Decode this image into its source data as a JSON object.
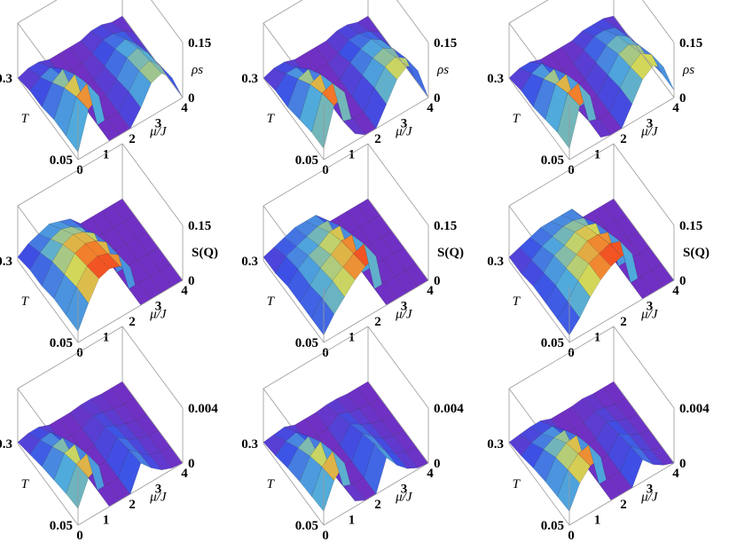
{
  "chart_data": [
    {
      "type": "surface3d",
      "row": 0,
      "col": 0,
      "zlabel": "ρs",
      "zlabel_italic": true,
      "zticks": [
        "0",
        "0.15"
      ],
      "yticks": [
        "0.05",
        "0.3"
      ],
      "ylabel": "T",
      "xticks": [
        "0",
        "1",
        "2",
        "3",
        "4"
      ],
      "xlabel": "μ/J",
      "grid_mu": [
        0,
        0.4,
        0.8,
        1.2,
        1.6,
        2.0,
        2.4,
        2.8,
        3.2,
        3.6,
        4.0
      ],
      "grid_T": [
        0.05,
        0.1,
        0.15,
        0.2,
        0.25,
        0.3
      ],
      "z": [
        [
          0.02,
          0.12,
          0.14,
          0.0,
          0.0,
          0.0,
          0.04,
          0.09,
          0.1,
          0.07,
          0.0
        ],
        [
          0.02,
          0.11,
          0.13,
          0.0,
          0.0,
          0.0,
          0.04,
          0.08,
          0.09,
          0.06,
          0.0
        ],
        [
          0.02,
          0.09,
          0.11,
          0.0,
          0.0,
          0.0,
          0.03,
          0.07,
          0.08,
          0.05,
          0.0
        ],
        [
          0.01,
          0.06,
          0.08,
          0.0,
          0.0,
          0.0,
          0.02,
          0.05,
          0.06,
          0.03,
          0.0
        ],
        [
          0.01,
          0.03,
          0.04,
          0.0,
          0.0,
          0.0,
          0.01,
          0.03,
          0.03,
          0.02,
          0.0
        ],
        [
          0.0,
          0.01,
          0.01,
          0.0,
          0.0,
          0.0,
          0.0,
          0.01,
          0.01,
          0.0,
          0.0
        ]
      ]
    },
    {
      "type": "surface3d",
      "row": 0,
      "col": 1,
      "zlabel": "ρs",
      "zlabel_italic": true,
      "zticks": [
        "0",
        "0.15"
      ],
      "yticks": [
        "0.05",
        "0.3"
      ],
      "ylabel": "T",
      "xticks": [
        "0",
        "1",
        "2",
        "3",
        "4"
      ],
      "xlabel": "μ/J",
      "grid_mu": [
        0,
        0.4,
        0.8,
        1.2,
        1.6,
        2.0,
        2.4,
        2.8,
        3.2,
        3.6,
        4.0
      ],
      "grid_T": [
        0.05,
        0.1,
        0.15,
        0.2,
        0.25,
        0.3
      ],
      "z": [
        [
          0.03,
          0.13,
          0.15,
          0.02,
          0.0,
          0.0,
          0.05,
          0.1,
          0.12,
          0.09,
          0.0
        ],
        [
          0.03,
          0.12,
          0.13,
          0.01,
          0.0,
          0.0,
          0.05,
          0.09,
          0.1,
          0.08,
          0.0
        ],
        [
          0.02,
          0.1,
          0.11,
          0.01,
          0.0,
          0.0,
          0.04,
          0.07,
          0.08,
          0.06,
          0.0
        ],
        [
          0.01,
          0.07,
          0.08,
          0.0,
          0.0,
          0.0,
          0.03,
          0.05,
          0.06,
          0.04,
          0.0
        ],
        [
          0.01,
          0.04,
          0.04,
          0.0,
          0.0,
          0.0,
          0.01,
          0.03,
          0.03,
          0.02,
          0.0
        ],
        [
          0.0,
          0.01,
          0.01,
          0.0,
          0.0,
          0.0,
          0.0,
          0.01,
          0.01,
          0.0,
          0.0
        ]
      ]
    },
    {
      "type": "surface3d",
      "row": 0,
      "col": 2,
      "zlabel": "ρs",
      "zlabel_italic": true,
      "zticks": [
        "0",
        "0.15"
      ],
      "yticks": [
        "0.05",
        "0.3"
      ],
      "ylabel": "T",
      "xticks": [
        "0",
        "1",
        "2",
        "3",
        "4"
      ],
      "xlabel": "μ/J",
      "grid_mu": [
        0,
        0.4,
        0.8,
        1.2,
        1.6,
        2.0,
        2.4,
        2.8,
        3.2,
        3.6,
        4.0
      ],
      "grid_T": [
        0.05,
        0.1,
        0.15,
        0.2,
        0.25,
        0.3
      ],
      "z": [
        [
          0.03,
          0.13,
          0.14,
          0.01,
          0.0,
          0.0,
          0.05,
          0.1,
          0.12,
          0.1,
          0.02
        ],
        [
          0.03,
          0.12,
          0.13,
          0.01,
          0.0,
          0.0,
          0.05,
          0.09,
          0.11,
          0.09,
          0.02
        ],
        [
          0.02,
          0.1,
          0.11,
          0.0,
          0.0,
          0.0,
          0.04,
          0.08,
          0.09,
          0.07,
          0.01
        ],
        [
          0.01,
          0.07,
          0.08,
          0.0,
          0.0,
          0.0,
          0.03,
          0.06,
          0.07,
          0.05,
          0.01
        ],
        [
          0.01,
          0.04,
          0.05,
          0.0,
          0.0,
          0.0,
          0.02,
          0.04,
          0.04,
          0.03,
          0.0
        ],
        [
          0.0,
          0.01,
          0.01,
          0.0,
          0.0,
          0.0,
          0.0,
          0.01,
          0.01,
          0.01,
          0.0
        ]
      ]
    },
    {
      "type": "surface3d",
      "row": 1,
      "col": 0,
      "zlabel": "S(Q)",
      "zlabel_italic": false,
      "zticks": [
        "0",
        "0.15"
      ],
      "yticks": [
        "0.05",
        "0.3"
      ],
      "ylabel": "T",
      "xticks": [
        "0",
        "1",
        "2",
        "3",
        "4"
      ],
      "xlabel": "μ/J",
      "grid_mu": [
        0,
        0.4,
        0.8,
        1.2,
        1.6,
        2.0,
        2.4,
        2.8,
        3.2,
        3.6,
        4.0
      ],
      "grid_T": [
        0.05,
        0.1,
        0.15,
        0.2,
        0.25,
        0.3
      ],
      "z": [
        [
          0.03,
          0.09,
          0.14,
          0.15,
          0.14,
          0.12,
          0.0,
          0.0,
          0.0,
          0.0,
          0.0
        ],
        [
          0.03,
          0.09,
          0.13,
          0.14,
          0.13,
          0.11,
          0.0,
          0.0,
          0.0,
          0.0,
          0.0
        ],
        [
          0.03,
          0.08,
          0.12,
          0.13,
          0.12,
          0.1,
          0.0,
          0.0,
          0.0,
          0.0,
          0.0
        ],
        [
          0.02,
          0.07,
          0.1,
          0.11,
          0.1,
          0.08,
          0.0,
          0.0,
          0.0,
          0.0,
          0.0
        ],
        [
          0.02,
          0.05,
          0.07,
          0.08,
          0.07,
          0.05,
          0.0,
          0.0,
          0.0,
          0.0,
          0.0
        ],
        [
          0.01,
          0.03,
          0.04,
          0.05,
          0.04,
          0.03,
          0.0,
          0.0,
          0.0,
          0.0,
          0.0
        ]
      ]
    },
    {
      "type": "surface3d",
      "row": 1,
      "col": 1,
      "zlabel": "S(Q)",
      "zlabel_italic": false,
      "zticks": [
        "0",
        "0.15"
      ],
      "yticks": [
        "0.05",
        "0.3"
      ],
      "ylabel": "T",
      "xticks": [
        "0",
        "1",
        "2",
        "3",
        "4"
      ],
      "xlabel": "μ/J",
      "grid_mu": [
        0,
        0.4,
        0.8,
        1.2,
        1.6,
        2.0,
        2.4,
        2.8,
        3.2,
        3.6,
        4.0
      ],
      "grid_T": [
        0.05,
        0.1,
        0.15,
        0.2,
        0.25,
        0.3
      ],
      "z": [
        [
          0.02,
          0.06,
          0.09,
          0.12,
          0.14,
          0.15,
          0.0,
          0.0,
          0.0,
          0.0,
          0.0
        ],
        [
          0.02,
          0.06,
          0.09,
          0.11,
          0.13,
          0.14,
          0.0,
          0.0,
          0.0,
          0.0,
          0.0
        ],
        [
          0.02,
          0.05,
          0.08,
          0.1,
          0.12,
          0.12,
          0.0,
          0.0,
          0.0,
          0.0,
          0.0
        ],
        [
          0.02,
          0.05,
          0.07,
          0.08,
          0.1,
          0.1,
          0.0,
          0.0,
          0.0,
          0.0,
          0.0
        ],
        [
          0.01,
          0.04,
          0.05,
          0.06,
          0.07,
          0.07,
          0.0,
          0.0,
          0.0,
          0.0,
          0.0
        ],
        [
          0.01,
          0.02,
          0.03,
          0.04,
          0.04,
          0.04,
          0.0,
          0.0,
          0.0,
          0.0,
          0.0
        ]
      ]
    },
    {
      "type": "surface3d",
      "row": 1,
      "col": 2,
      "zlabel": "S(Q)",
      "zlabel_italic": false,
      "zticks": [
        "0",
        "0.15"
      ],
      "yticks": [
        "0.05",
        "0.3"
      ],
      "ylabel": "T",
      "xticks": [
        "0",
        "1",
        "2",
        "3",
        "4"
      ],
      "xlabel": "μ/J",
      "grid_mu": [
        0,
        0.4,
        0.8,
        1.2,
        1.6,
        2.0,
        2.4,
        2.8,
        3.2,
        3.6,
        4.0
      ],
      "grid_T": [
        0.05,
        0.1,
        0.15,
        0.2,
        0.25,
        0.3
      ],
      "z": [
        [
          0.02,
          0.05,
          0.09,
          0.12,
          0.14,
          0.15,
          0.14,
          0.0,
          0.0,
          0.0,
          0.0
        ],
        [
          0.02,
          0.05,
          0.09,
          0.12,
          0.13,
          0.14,
          0.13,
          0.0,
          0.0,
          0.0,
          0.0
        ],
        [
          0.02,
          0.05,
          0.08,
          0.1,
          0.12,
          0.12,
          0.11,
          0.0,
          0.0,
          0.0,
          0.0
        ],
        [
          0.02,
          0.04,
          0.07,
          0.08,
          0.1,
          0.1,
          0.09,
          0.0,
          0.0,
          0.0,
          0.0
        ],
        [
          0.01,
          0.03,
          0.05,
          0.06,
          0.07,
          0.07,
          0.06,
          0.0,
          0.0,
          0.0,
          0.0
        ],
        [
          0.01,
          0.02,
          0.03,
          0.04,
          0.04,
          0.04,
          0.04,
          0.0,
          0.0,
          0.0,
          0.0
        ]
      ]
    },
    {
      "type": "surface3d",
      "row": 2,
      "col": 0,
      "zlabel": "0.004",
      "zlabel_italic": false,
      "zticks": [
        "0",
        "0.004"
      ],
      "yticks": [
        "0.05",
        "0.3"
      ],
      "ylabel": "T",
      "xticks": [
        "0",
        "1",
        "2",
        "3",
        "4"
      ],
      "xlabel": "μ/J",
      "grid_mu": [
        0,
        0.4,
        0.8,
        1.2,
        1.6,
        2.0,
        2.4,
        2.8,
        3.2,
        3.6,
        4.0
      ],
      "grid_T": [
        0.05,
        0.1,
        0.15,
        0.2,
        0.25,
        0.3
      ],
      "z": [
        [
          0.0012,
          0.003,
          0.0034,
          0.0,
          0.0,
          0.0,
          0.0018,
          0.001,
          0.0004,
          0.0001,
          0.0
        ],
        [
          0.0011,
          0.0028,
          0.0031,
          0.0,
          0.0,
          0.0,
          0.0016,
          0.0009,
          0.0003,
          0.0001,
          0.0
        ],
        [
          0.0009,
          0.0024,
          0.0026,
          0.0,
          0.0,
          0.0,
          0.0013,
          0.0007,
          0.0003,
          0.0001,
          0.0
        ],
        [
          0.0007,
          0.0017,
          0.0019,
          0.0,
          0.0,
          0.0,
          0.0009,
          0.0005,
          0.0002,
          0.0,
          0.0
        ],
        [
          0.0004,
          0.001,
          0.0011,
          0.0,
          0.0,
          0.0,
          0.0005,
          0.0003,
          0.0001,
          0.0,
          0.0
        ],
        [
          0.0001,
          0.0003,
          0.0003,
          0.0,
          0.0,
          0.0,
          0.0001,
          0.0001,
          0.0,
          0.0,
          0.0
        ]
      ]
    },
    {
      "type": "surface3d",
      "row": 2,
      "col": 1,
      "zlabel": "0.004",
      "zlabel_italic": false,
      "zticks": [
        "0",
        "0.004"
      ],
      "yticks": [
        "0.05",
        "0.3"
      ],
      "ylabel": "T",
      "xticks": [
        "0",
        "1",
        "2",
        "3",
        "4"
      ],
      "xlabel": "μ/J",
      "grid_mu": [
        0,
        0.4,
        0.8,
        1.2,
        1.6,
        2.0,
        2.4,
        2.8,
        3.2,
        3.6,
        4.0
      ],
      "grid_T": [
        0.05,
        0.1,
        0.15,
        0.2,
        0.25,
        0.3
      ],
      "z": [
        [
          0.001,
          0.0028,
          0.0036,
          0.0004,
          0.0,
          0.0,
          0.0022,
          0.0012,
          0.0005,
          0.0001,
          0.0
        ],
        [
          0.0009,
          0.0026,
          0.0033,
          0.0003,
          0.0,
          0.0,
          0.002,
          0.0011,
          0.0004,
          0.0001,
          0.0
        ],
        [
          0.0008,
          0.0022,
          0.0028,
          0.0002,
          0.0,
          0.0,
          0.0016,
          0.0009,
          0.0003,
          0.0001,
          0.0
        ],
        [
          0.0006,
          0.0016,
          0.002,
          0.0001,
          0.0,
          0.0,
          0.0011,
          0.0006,
          0.0002,
          0.0,
          0.0
        ],
        [
          0.0003,
          0.0009,
          0.0011,
          0.0,
          0.0,
          0.0,
          0.0006,
          0.0003,
          0.0001,
          0.0,
          0.0
        ],
        [
          0.0001,
          0.0002,
          0.0003,
          0.0,
          0.0,
          0.0,
          0.0001,
          0.0001,
          0.0,
          0.0,
          0.0
        ]
      ]
    },
    {
      "type": "surface3d",
      "row": 2,
      "col": 2,
      "zlabel": "0.004",
      "zlabel_italic": false,
      "zticks": [
        "0",
        "0.004"
      ],
      "yticks": [
        "0.05",
        "0.3"
      ],
      "ylabel": "T",
      "xticks": [
        "0",
        "1",
        "2",
        "3",
        "4"
      ],
      "xlabel": "μ/J",
      "grid_mu": [
        0,
        0.4,
        0.8,
        1.2,
        1.6,
        2.0,
        2.4,
        2.8,
        3.2,
        3.6,
        4.0
      ],
      "grid_T": [
        0.05,
        0.1,
        0.15,
        0.2,
        0.25,
        0.3
      ],
      "z": [
        [
          0.001,
          0.0026,
          0.0034,
          0.0036,
          0.0,
          0.0,
          0.0,
          0.0016,
          0.0008,
          0.0003,
          0.0
        ],
        [
          0.0009,
          0.0024,
          0.0031,
          0.0033,
          0.0,
          0.0,
          0.0,
          0.0014,
          0.0007,
          0.0002,
          0.0
        ],
        [
          0.0008,
          0.0021,
          0.0027,
          0.0028,
          0.0,
          0.0,
          0.0,
          0.0011,
          0.0006,
          0.0002,
          0.0
        ],
        [
          0.0006,
          0.0015,
          0.0019,
          0.002,
          0.0,
          0.0,
          0.0,
          0.0008,
          0.0004,
          0.0001,
          0.0
        ],
        [
          0.0003,
          0.0008,
          0.001,
          0.0011,
          0.0,
          0.0,
          0.0,
          0.0004,
          0.0002,
          0.0,
          0.0
        ],
        [
          0.0001,
          0.0002,
          0.0003,
          0.0003,
          0.0,
          0.0,
          0.0,
          0.0001,
          0.0,
          0.0,
          0.0
        ]
      ]
    }
  ]
}
